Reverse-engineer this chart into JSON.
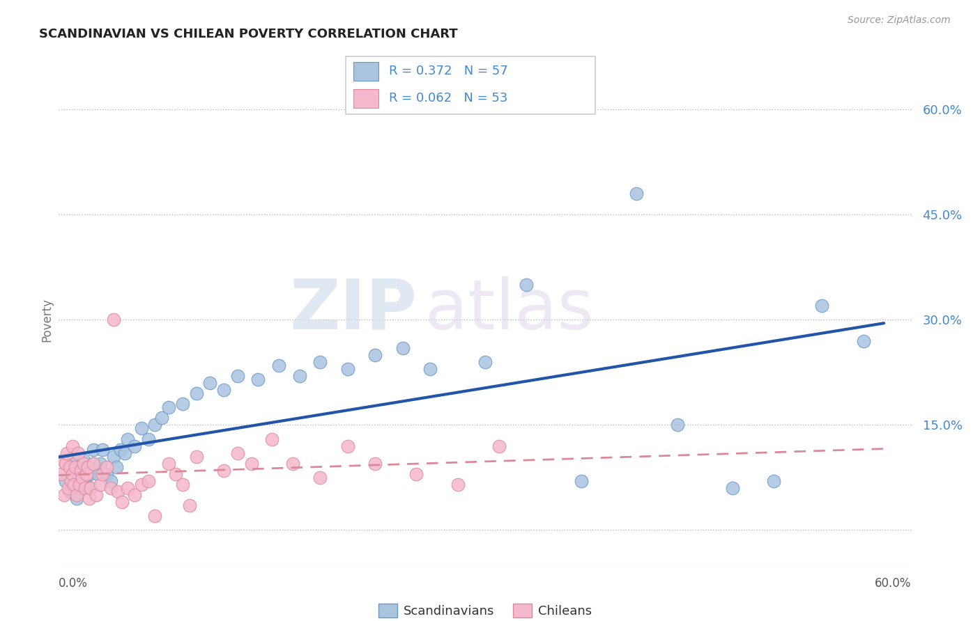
{
  "title": "SCANDINAVIAN VS CHILEAN POVERTY CORRELATION CHART",
  "source": "Source: ZipAtlas.com",
  "ylabel": "Poverty",
  "xlim": [
    0.0,
    0.62
  ],
  "ylim": [
    -0.05,
    0.65
  ],
  "ytick_vals": [
    0.0,
    0.15,
    0.3,
    0.45,
    0.6
  ],
  "ytick_labels": [
    "",
    "15.0%",
    "30.0%",
    "45.0%",
    "60.0%"
  ],
  "scand_color": "#aac4e0",
  "scand_edge": "#6699cc",
  "chile_color": "#f5b8cc",
  "chile_edge": "#dd8899",
  "line_scand_color": "#2255aa",
  "line_chile_color": "#dd8899",
  "legend_text_color": "#4488cc",
  "scand_x": [
    0.005,
    0.005,
    0.008,
    0.01,
    0.01,
    0.012,
    0.013,
    0.013,
    0.015,
    0.015,
    0.017,
    0.018,
    0.018,
    0.02,
    0.02,
    0.022,
    0.022,
    0.025,
    0.025,
    0.028,
    0.03,
    0.032,
    0.035,
    0.038,
    0.04,
    0.042,
    0.045,
    0.048,
    0.05,
    0.055,
    0.06,
    0.065,
    0.07,
    0.075,
    0.08,
    0.09,
    0.1,
    0.11,
    0.12,
    0.13,
    0.145,
    0.16,
    0.175,
    0.19,
    0.21,
    0.23,
    0.25,
    0.27,
    0.31,
    0.34,
    0.38,
    0.42,
    0.45,
    0.49,
    0.52,
    0.555,
    0.585
  ],
  "scand_y": [
    0.07,
    0.095,
    0.055,
    0.08,
    0.105,
    0.065,
    0.045,
    0.075,
    0.06,
    0.09,
    0.07,
    0.085,
    0.1,
    0.065,
    0.09,
    0.06,
    0.08,
    0.095,
    0.115,
    0.08,
    0.095,
    0.115,
    0.08,
    0.07,
    0.105,
    0.09,
    0.115,
    0.11,
    0.13,
    0.12,
    0.145,
    0.13,
    0.15,
    0.16,
    0.175,
    0.18,
    0.195,
    0.21,
    0.2,
    0.22,
    0.215,
    0.235,
    0.22,
    0.24,
    0.23,
    0.25,
    0.26,
    0.23,
    0.24,
    0.35,
    0.07,
    0.48,
    0.15,
    0.06,
    0.07,
    0.32,
    0.27
  ],
  "chile_x": [
    0.002,
    0.003,
    0.004,
    0.005,
    0.006,
    0.007,
    0.008,
    0.009,
    0.01,
    0.01,
    0.011,
    0.012,
    0.013,
    0.014,
    0.015,
    0.016,
    0.017,
    0.018,
    0.019,
    0.02,
    0.021,
    0.022,
    0.023,
    0.025,
    0.027,
    0.03,
    0.032,
    0.035,
    0.038,
    0.04,
    0.043,
    0.046,
    0.05,
    0.055,
    0.06,
    0.065,
    0.07,
    0.08,
    0.085,
    0.09,
    0.095,
    0.1,
    0.12,
    0.13,
    0.14,
    0.155,
    0.17,
    0.19,
    0.21,
    0.23,
    0.26,
    0.29,
    0.32
  ],
  "chile_y": [
    0.08,
    0.1,
    0.05,
    0.095,
    0.11,
    0.06,
    0.09,
    0.07,
    0.08,
    0.12,
    0.065,
    0.09,
    0.05,
    0.11,
    0.065,
    0.085,
    0.075,
    0.095,
    0.06,
    0.08,
    0.09,
    0.045,
    0.06,
    0.095,
    0.05,
    0.065,
    0.08,
    0.09,
    0.06,
    0.3,
    0.055,
    0.04,
    0.06,
    0.05,
    0.065,
    0.07,
    0.02,
    0.095,
    0.08,
    0.065,
    0.035,
    0.105,
    0.085,
    0.11,
    0.095,
    0.13,
    0.095,
    0.075,
    0.12,
    0.095,
    0.08,
    0.065,
    0.12
  ]
}
